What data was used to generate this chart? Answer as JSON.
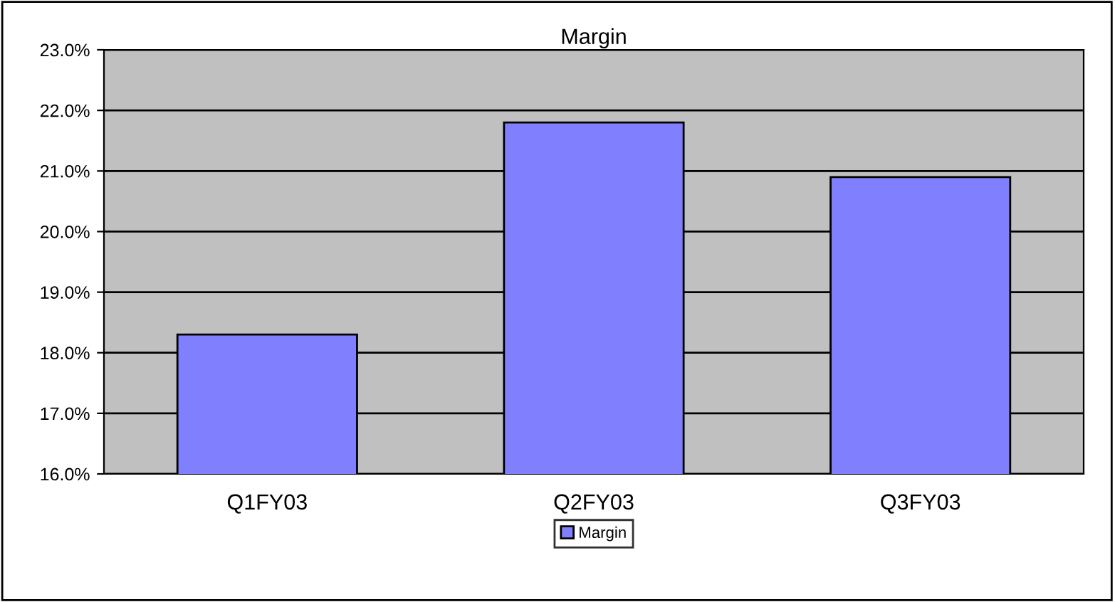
{
  "chart_data": {
    "type": "bar",
    "title": "Margin",
    "categories": [
      "Q1FY03",
      "Q2FY03",
      "Q3FY03"
    ],
    "series": [
      {
        "name": "Margin",
        "color": "#8080ff",
        "values": [
          18.3,
          21.8,
          20.9
        ]
      }
    ],
    "ylim": [
      16,
      23
    ],
    "yticks": [
      {
        "value": 16,
        "label": "16.0%"
      },
      {
        "value": 17,
        "label": "17.0%"
      },
      {
        "value": 18,
        "label": "18.0%"
      },
      {
        "value": 19,
        "label": "19.0%"
      },
      {
        "value": 20,
        "label": "20.0%"
      },
      {
        "value": 21,
        "label": "21.0%"
      },
      {
        "value": 22,
        "label": "22.0%"
      },
      {
        "value": 23,
        "label": "23.0%"
      }
    ],
    "grid": "y",
    "legend": "bottom"
  }
}
